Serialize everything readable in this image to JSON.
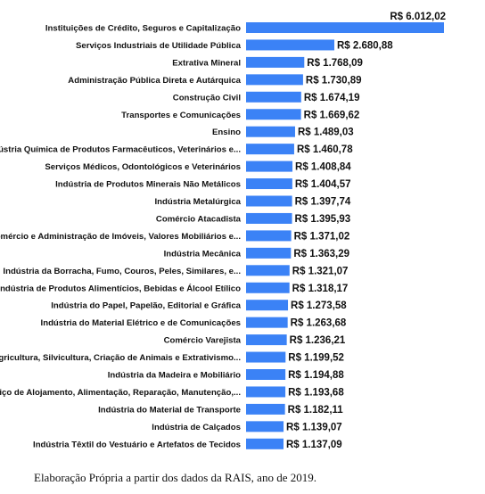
{
  "chart_data": {
    "type": "bar",
    "orientation": "horizontal",
    "bar_color": "#3b82f6",
    "categories": [
      "Instituições de Crédito, Seguros e Capitalização",
      "Serviços Industriais de Utilidade Pública",
      "Extrativa Mineral",
      "Administração Pública Direta e Autárquica",
      "Construção Civil",
      "Transportes e Comunicações",
      "Ensino",
      "Indústria Química de Produtos Farmacêuticos, Veterinários e...",
      "Serviços Médicos, Odontológicos e Veterinários",
      "Indústria de Produtos Minerais Não Metálicos",
      "Indústria Metalúrgica",
      "Comércio Atacadista",
      "Comércio e Administração de Imóveis, Valores Mobiliários e...",
      "Indústria Mecânica",
      "Indústria da Borracha, Fumo, Couros, Peles, Similares, e...",
      "Indústria de Produtos Alimentícios, Bebidas e Álcool Etílico",
      "Indústria do Papel, Papelão, Editorial e Gráfica",
      "Indústria do Material Elétrico e de Comunicações",
      "Comércio Varejista",
      "Agricultura, Silvicultura, Criação de Animais e Extrativismo...",
      "Indústria da Madeira e Mobiliário",
      "Serviço de Alojamento, Alimentação, Reparação, Manutenção,...",
      "Indústria do Material de Transporte",
      "Indústria de Calçados",
      "Indústria Têxtil do Vestuário e Artefatos de Tecidos"
    ],
    "values": [
      6012.02,
      2680.88,
      1768.09,
      1730.89,
      1674.19,
      1669.62,
      1489.03,
      1460.78,
      1408.84,
      1404.57,
      1397.74,
      1395.93,
      1371.02,
      1363.29,
      1321.07,
      1318.17,
      1273.58,
      1263.68,
      1236.21,
      1199.52,
      1194.88,
      1193.68,
      1182.11,
      1139.07,
      1137.09
    ],
    "value_labels": [
      "R$ 6.012,02",
      "R$ 2.680,88",
      "R$ 1.768,09",
      "R$ 1.730,89",
      "R$ 1.674,19",
      "R$ 1.669,62",
      "R$ 1.489,03",
      "R$ 1.460,78",
      "R$ 1.408,84",
      "R$ 1.404,57",
      "R$ 1.397,74",
      "R$ 1.395,93",
      "R$ 1.371,02",
      "R$ 1.363,29",
      "R$ 1.321,07",
      "R$ 1.318,17",
      "R$ 1.273,58",
      "R$ 1.263,68",
      "R$ 1.236,21",
      "R$ 1.199,52",
      "R$ 1.194,88",
      "R$ 1.193,68",
      "R$ 1.182,11",
      "R$ 1.139,07",
      "R$ 1.137,09"
    ],
    "xlim": [
      0,
      6012.02
    ],
    "grid": false,
    "legend": "none"
  },
  "caption": "Elaboração Própria a partir dos dados da RAIS, ano de 2019."
}
